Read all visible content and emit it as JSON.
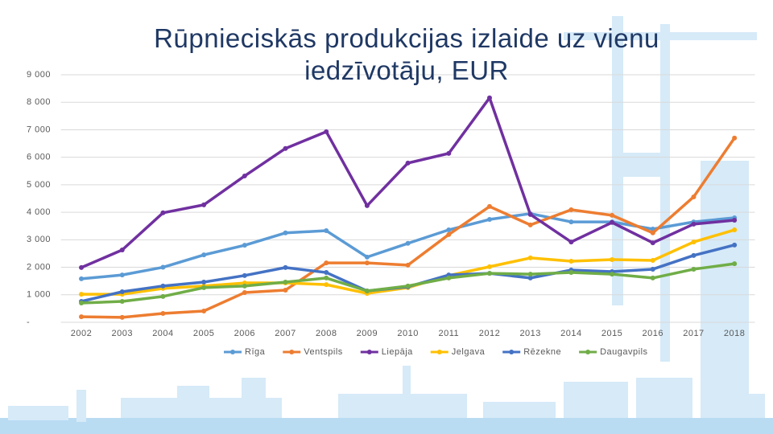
{
  "chart_data": {
    "type": "line",
    "title": "Rūpnieciskās produkcijas izlaide uz vienu iedzīvotāju, EUR",
    "categories": [
      "2002",
      "2003",
      "2004",
      "2005",
      "2006",
      "2007",
      "2008",
      "2009",
      "2010",
      "2011",
      "2012",
      "2013",
      "2014",
      "2015",
      "2016",
      "2017",
      "2018"
    ],
    "series": [
      {
        "name": "Rīga",
        "color": "#5b9bd5",
        "values": [
          1580,
          1720,
          2000,
          2450,
          2800,
          3250,
          3330,
          2370,
          2870,
          3360,
          3740,
          3950,
          3650,
          3650,
          3390,
          3650,
          3800
        ]
      },
      {
        "name": "Ventspils",
        "color": "#ed7d31",
        "values": [
          200,
          180,
          320,
          410,
          1080,
          1170,
          2160,
          2160,
          2080,
          3190,
          4210,
          3540,
          4090,
          3890,
          3250,
          4560,
          6700
        ]
      },
      {
        "name": "Liepāja",
        "color": "#7030a0",
        "values": [
          1990,
          2630,
          3980,
          4270,
          5320,
          6320,
          6930,
          4240,
          5790,
          6140,
          8160,
          3920,
          2920,
          3630,
          2890,
          3570,
          3710
        ]
      },
      {
        "name": "Jelgava",
        "color": "#ffc000",
        "values": [
          1020,
          1020,
          1230,
          1320,
          1430,
          1430,
          1370,
          1050,
          1260,
          1700,
          2020,
          2340,
          2220,
          2280,
          2250,
          2920,
          3360
        ]
      },
      {
        "name": "Rēzekne",
        "color": "#4472c4",
        "values": [
          760,
          1110,
          1320,
          1460,
          1700,
          1990,
          1810,
          1140,
          1290,
          1720,
          1780,
          1610,
          1900,
          1840,
          1930,
          2430,
          2810
        ]
      },
      {
        "name": "Daugavpils",
        "color": "#70ad47",
        "values": [
          700,
          760,
          940,
          1260,
          1320,
          1460,
          1610,
          1140,
          1320,
          1610,
          1780,
          1750,
          1810,
          1750,
          1610,
          1930,
          2130
        ]
      }
    ],
    "ylim": [
      0,
      9000
    ],
    "yticks": [
      {
        "value": 0,
        "label": "-"
      },
      {
        "value": 1000,
        "label": "1 000"
      },
      {
        "value": 2000,
        "label": "2 000"
      },
      {
        "value": 3000,
        "label": "3 000"
      },
      {
        "value": 4000,
        "label": "4 000"
      },
      {
        "value": 5000,
        "label": "5 000"
      },
      {
        "value": 6000,
        "label": "6 000"
      },
      {
        "value": 7000,
        "label": "7 000"
      },
      {
        "value": 8000,
        "label": "8 000"
      },
      {
        "value": 9000,
        "label": "9 000"
      }
    ],
    "grid": true,
    "legend": "bottom"
  }
}
